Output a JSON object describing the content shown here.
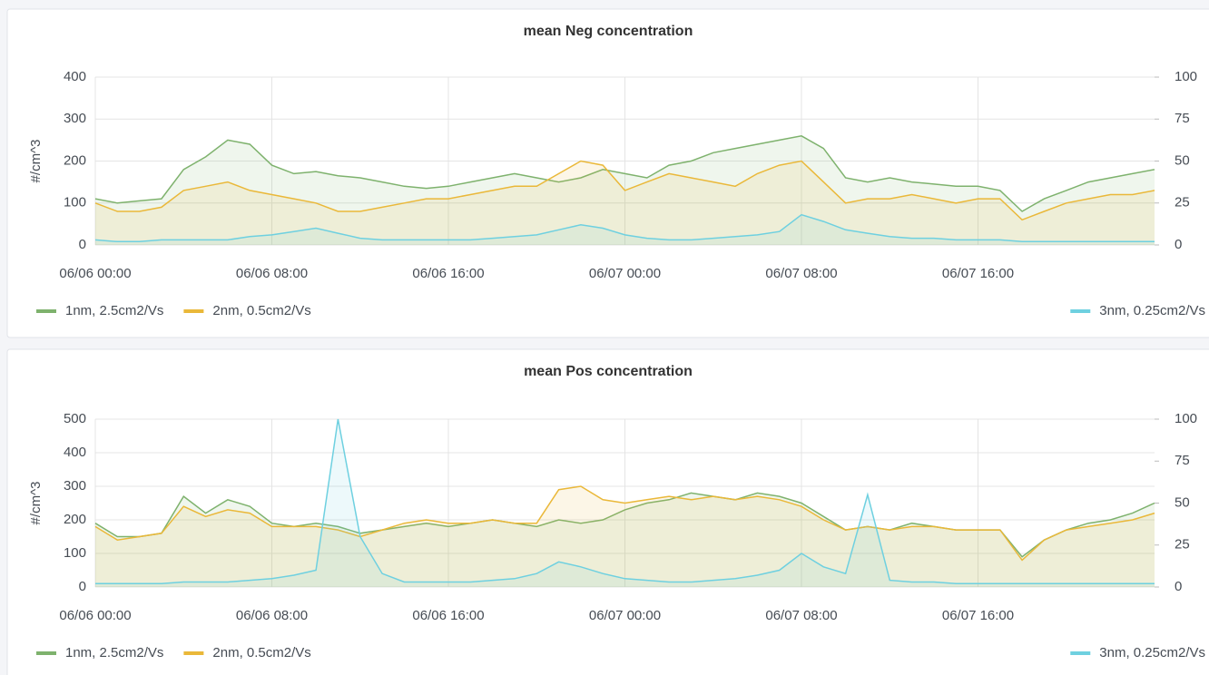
{
  "chart_data": [
    {
      "type": "line",
      "title": "mean Neg concentration",
      "y_label": "#/cm^3",
      "x": [
        "06/06 00:00",
        "06/06 01:00",
        "06/06 02:00",
        "06/06 03:00",
        "06/06 04:00",
        "06/06 05:00",
        "06/06 06:00",
        "06/06 07:00",
        "06/06 08:00",
        "06/06 09:00",
        "06/06 10:00",
        "06/06 11:00",
        "06/06 12:00",
        "06/06 13:00",
        "06/06 14:00",
        "06/06 15:00",
        "06/06 16:00",
        "06/06 17:00",
        "06/06 18:00",
        "06/06 19:00",
        "06/06 20:00",
        "06/06 21:00",
        "06/06 22:00",
        "06/06 23:00",
        "06/07 00:00",
        "06/07 01:00",
        "06/07 02:00",
        "06/07 03:00",
        "06/07 04:00",
        "06/07 05:00",
        "06/07 06:00",
        "06/07 07:00",
        "06/07 08:00",
        "06/07 09:00",
        "06/07 10:00",
        "06/07 11:00",
        "06/07 12:00",
        "06/07 13:00",
        "06/07 14:00",
        "06/07 15:00",
        "06/07 16:00",
        "06/07 17:00",
        "06/07 18:00",
        "06/07 19:00",
        "06/07 20:00",
        "06/07 21:00",
        "06/07 22:00",
        "06/07 23:00",
        "06/08 00:00"
      ],
      "xticks": [
        "06/06 00:00",
        "06/06 08:00",
        "06/06 16:00",
        "06/07 00:00",
        "06/07 08:00",
        "06/07 16:00"
      ],
      "ylim": [
        0,
        400
      ],
      "yticks": [
        0,
        100,
        200,
        300,
        400
      ],
      "y2lim": [
        0,
        100
      ],
      "y2ticks": [
        0,
        25,
        50,
        75,
        100
      ],
      "grid": true,
      "series": [
        {
          "name": "1nm, 2.5cm2/Vs",
          "color": "#7eb26d",
          "values": [
            110,
            100,
            105,
            110,
            180,
            210,
            250,
            240,
            190,
            170,
            175,
            165,
            160,
            150,
            140,
            135,
            140,
            150,
            160,
            170,
            160,
            150,
            160,
            180,
            170,
            160,
            190,
            200,
            220,
            230,
            240,
            250,
            260,
            230,
            160,
            150,
            160,
            150,
            145,
            140,
            140,
            130,
            80,
            110,
            130,
            150,
            160,
            170,
            180
          ]
        },
        {
          "name": "2nm, 0.5cm2/Vs",
          "color": "#eab839",
          "values": [
            100,
            80,
            80,
            90,
            130,
            140,
            150,
            130,
            120,
            110,
            100,
            80,
            80,
            90,
            100,
            110,
            110,
            120,
            130,
            140,
            140,
            170,
            200,
            190,
            130,
            150,
            170,
            160,
            150,
            140,
            170,
            190,
            200,
            150,
            100,
            110,
            110,
            120,
            110,
            100,
            110,
            110,
            60,
            80,
            100,
            110,
            120,
            120,
            130
          ]
        },
        {
          "name": "3nm, 0.25cm2/Vs",
          "color": "#6ed0e0",
          "axis": "y2",
          "values": [
            3,
            2,
            2,
            3,
            3,
            3,
            3,
            5,
            6,
            8,
            10,
            7,
            4,
            3,
            3,
            3,
            3,
            3,
            4,
            5,
            6,
            9,
            12,
            10,
            6,
            4,
            3,
            3,
            4,
            5,
            6,
            8,
            18,
            14,
            9,
            7,
            5,
            4,
            4,
            3,
            3,
            3,
            2,
            2,
            2,
            2,
            2,
            2,
            2
          ]
        }
      ]
    },
    {
      "type": "line",
      "title": "mean Pos concentration",
      "y_label": "#/cm^3",
      "x": [
        "06/06 00:00",
        "06/06 01:00",
        "06/06 02:00",
        "06/06 03:00",
        "06/06 04:00",
        "06/06 05:00",
        "06/06 06:00",
        "06/06 07:00",
        "06/06 08:00",
        "06/06 09:00",
        "06/06 10:00",
        "06/06 11:00",
        "06/06 12:00",
        "06/06 13:00",
        "06/06 14:00",
        "06/06 15:00",
        "06/06 16:00",
        "06/06 17:00",
        "06/06 18:00",
        "06/06 19:00",
        "06/06 20:00",
        "06/06 21:00",
        "06/06 22:00",
        "06/06 23:00",
        "06/07 00:00",
        "06/07 01:00",
        "06/07 02:00",
        "06/07 03:00",
        "06/07 04:00",
        "06/07 05:00",
        "06/07 06:00",
        "06/07 07:00",
        "06/07 08:00",
        "06/07 09:00",
        "06/07 10:00",
        "06/07 11:00",
        "06/07 12:00",
        "06/07 13:00",
        "06/07 14:00",
        "06/07 15:00",
        "06/07 16:00",
        "06/07 17:00",
        "06/07 18:00",
        "06/07 19:00",
        "06/07 20:00",
        "06/07 21:00",
        "06/07 22:00",
        "06/07 23:00",
        "06/08 00:00"
      ],
      "xticks": [
        "06/06 00:00",
        "06/06 08:00",
        "06/06 16:00",
        "06/07 00:00",
        "06/07 08:00",
        "06/07 16:00"
      ],
      "ylim": [
        0,
        500
      ],
      "yticks": [
        0,
        100,
        200,
        300,
        400,
        500
      ],
      "y2lim": [
        0,
        100
      ],
      "y2ticks": [
        0,
        25,
        50,
        75,
        100
      ],
      "grid": true,
      "series": [
        {
          "name": "1nm, 2.5cm2/Vs",
          "color": "#7eb26d",
          "values": [
            190,
            150,
            150,
            160,
            270,
            220,
            260,
            240,
            190,
            180,
            190,
            180,
            160,
            170,
            180,
            190,
            180,
            190,
            200,
            190,
            180,
            200,
            190,
            200,
            230,
            250,
            260,
            280,
            270,
            260,
            280,
            270,
            250,
            210,
            170,
            180,
            170,
            190,
            180,
            170,
            170,
            170,
            90,
            140,
            170,
            190,
            200,
            220,
            250
          ]
        },
        {
          "name": "2nm, 0.5cm2/Vs",
          "color": "#eab839",
          "values": [
            180,
            140,
            150,
            160,
            240,
            210,
            230,
            220,
            180,
            180,
            180,
            170,
            150,
            170,
            190,
            200,
            190,
            190,
            200,
            190,
            190,
            290,
            300,
            260,
            250,
            260,
            270,
            260,
            270,
            260,
            270,
            260,
            240,
            200,
            170,
            180,
            170,
            180,
            180,
            170,
            170,
            170,
            80,
            140,
            170,
            180,
            190,
            200,
            220
          ]
        },
        {
          "name": "3nm, 0.25cm2/Vs",
          "color": "#6ed0e0",
          "axis": "y2",
          "values": [
            2,
            2,
            2,
            2,
            3,
            3,
            3,
            4,
            5,
            7,
            10,
            100,
            30,
            8,
            3,
            3,
            3,
            3,
            4,
            5,
            8,
            15,
            12,
            8,
            5,
            4,
            3,
            3,
            4,
            5,
            7,
            10,
            20,
            12,
            8,
            55,
            4,
            3,
            3,
            2,
            2,
            2,
            2,
            2,
            2,
            2,
            2,
            2,
            2
          ]
        }
      ]
    }
  ]
}
